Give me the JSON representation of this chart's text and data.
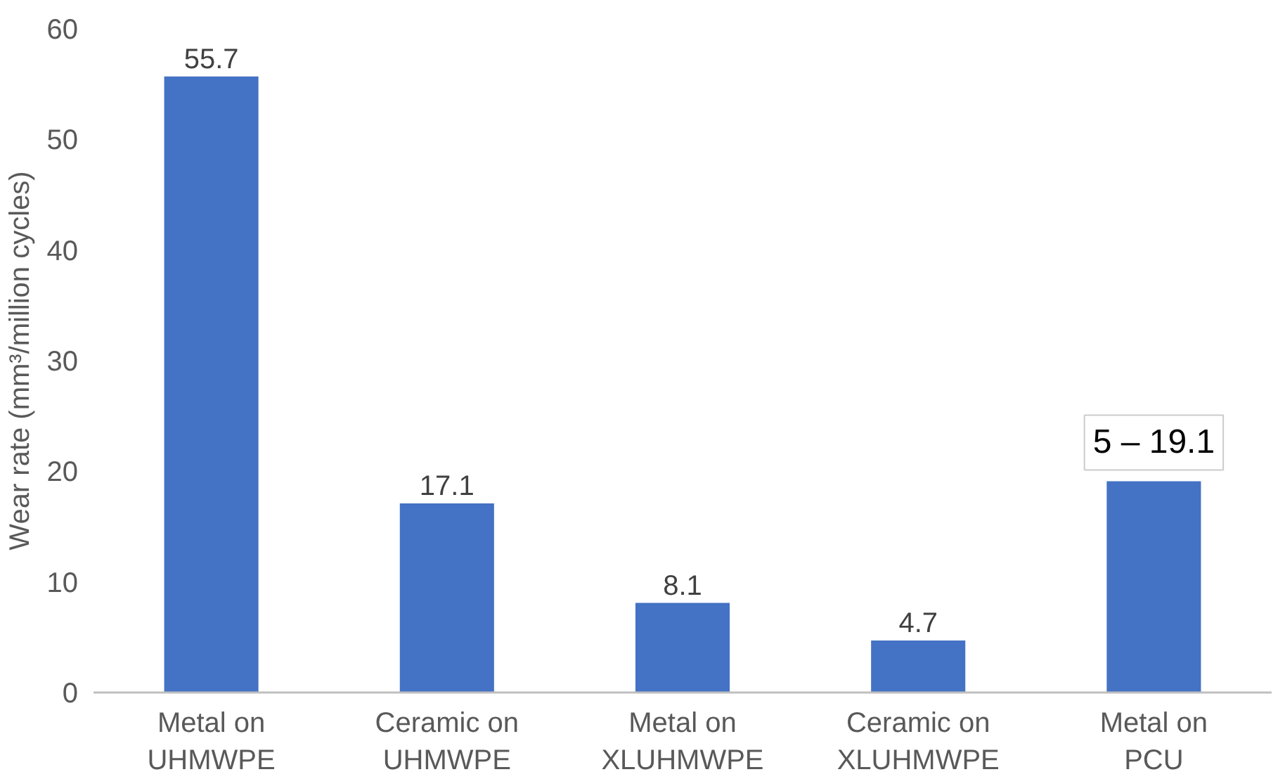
{
  "chart_data": {
    "type": "bar",
    "ylabel": "Wear rate (mm³/million cycles)",
    "categories": [
      "Metal on\nUHMWPE",
      "Ceramic on\nUHMWPE",
      "Metal on\nXLUHMWPE",
      "Ceramic on\nXLUHMWPE",
      "Metal on\nPCU"
    ],
    "values": [
      55.7,
      17.1,
      8.1,
      4.7,
      19.1
    ],
    "value_labels": [
      "55.7",
      "17.1",
      "8.1",
      "4.7",
      null
    ],
    "annotations": [
      {
        "text": "5 – 19.1",
        "x": "Metal on\nPCU",
        "y": 19.1
      }
    ],
    "color": "#4472c4",
    "ylim": [
      0,
      60
    ],
    "yticks": [
      0,
      10,
      20,
      30,
      40,
      50,
      60
    ],
    "grid": false
  }
}
